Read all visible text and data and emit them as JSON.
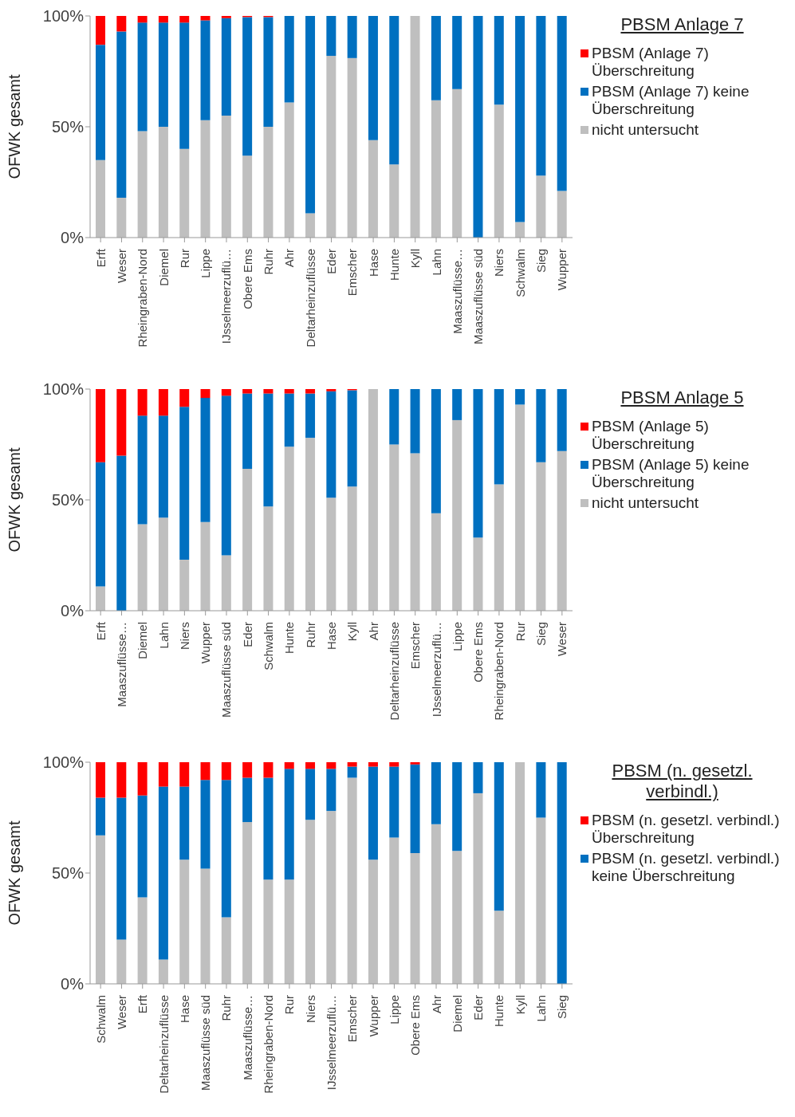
{
  "chart_data": [
    {
      "type": "bar",
      "stacked": true,
      "ylabel": "OFWK gesamt",
      "legend_title": "PBSM Anlage 7",
      "legend": "right",
      "ylim": [
        0,
        100
      ],
      "yticks": [
        {
          "value": 0,
          "label": "0%"
        },
        {
          "value": 50,
          "label": "50%"
        },
        {
          "value": 100,
          "label": "100%"
        }
      ],
      "categories": [
        "Erft",
        "Weser",
        "Rheingraben-Nord",
        "Diemel",
        "Rur",
        "Lippe",
        "IJsselmeerzuflü…",
        "Obere Ems",
        "Ruhr",
        "Ahr",
        "Deltarheinzuflüsse",
        "Eder",
        "Emscher",
        "Hase",
        "Hunte",
        "Kyll",
        "Lahn",
        "Maaszuflüsse…",
        "Maaszuflüsse süd",
        "Niers",
        "Schwalm",
        "Sieg",
        "Wupper"
      ],
      "series": [
        {
          "name": "nicht untersucht",
          "color": "#bfbfbf",
          "values": [
            35,
            18,
            48,
            50,
            40,
            53,
            55,
            37,
            50,
            61,
            11,
            82,
            81,
            44,
            33,
            100,
            62,
            67,
            0,
            60,
            7,
            28,
            21
          ]
        },
        {
          "name": "PBSM (Anlage 7) keine Überschreitung",
          "color": "#0070c0",
          "values": [
            52,
            75,
            49,
            47,
            57,
            45,
            44,
            62.5,
            49.5,
            39,
            89,
            18,
            19,
            56,
            67,
            0,
            38,
            33,
            100,
            40,
            93,
            72,
            79
          ]
        },
        {
          "name": "PBSM (Anlage 7) Überschreitung",
          "color": "#ff0000",
          "values": [
            13,
            7,
            3,
            3,
            3,
            2,
            1,
            0.5,
            0.5,
            0,
            0,
            0,
            0,
            0,
            0,
            0,
            0,
            0,
            0,
            0,
            0,
            0,
            0
          ]
        }
      ]
    },
    {
      "type": "bar",
      "stacked": true,
      "ylabel": "OFWK gesamt",
      "legend_title": "PBSM Anlage 5",
      "legend": "right",
      "ylim": [
        0,
        100
      ],
      "yticks": [
        {
          "value": 0,
          "label": "0%"
        },
        {
          "value": 50,
          "label": "50%"
        },
        {
          "value": 100,
          "label": "100%"
        }
      ],
      "categories": [
        "Erft",
        "Maaszuflüsse…",
        "Diemel",
        "Lahn",
        "Niers",
        "Wupper",
        "Maaszuflüsse süd",
        "Eder",
        "Schwalm",
        "Hunte",
        "Ruhr",
        "Hase",
        "Kyll",
        "Ahr",
        "Deltarheinzuflüsse",
        "Emscher",
        "IJsselmeerzuflü…",
        "Lippe",
        "Obere Ems",
        "Rheingraben-Nord",
        "Rur",
        "Sieg",
        "Weser"
      ],
      "series": [
        {
          "name": "nicht untersucht",
          "color": "#bfbfbf",
          "values": [
            11,
            0,
            39,
            42,
            23,
            40,
            25,
            64,
            47,
            74,
            78,
            51,
            56,
            100,
            75,
            71,
            44,
            86,
            33,
            57,
            93,
            67,
            72
          ]
        },
        {
          "name": "PBSM (Anlage 5) keine Überschreitung",
          "color": "#0070c0",
          "values": [
            56,
            70,
            49,
            46,
            69,
            56,
            72,
            34,
            51,
            24,
            20,
            48,
            43.5,
            0,
            25,
            29,
            56,
            14,
            67,
            43,
            7,
            33,
            28
          ]
        },
        {
          "name": "PBSM (Anlage 5) Überschreitung",
          "color": "#ff0000",
          "values": [
            33,
            30,
            12,
            12,
            8,
            4,
            3,
            2,
            2,
            2,
            2,
            1,
            0.5,
            0,
            0,
            0,
            0,
            0,
            0,
            0,
            0,
            0,
            0
          ]
        }
      ]
    },
    {
      "type": "bar",
      "stacked": true,
      "ylabel": "OFWK gesamt",
      "legend_title": "PBSM (n. gesetzl. verbindl.)",
      "legend": "right",
      "ylim": [
        0,
        100
      ],
      "yticks": [
        {
          "value": 0,
          "label": "0%"
        },
        {
          "value": 50,
          "label": "50%"
        },
        {
          "value": 100,
          "label": "100%"
        }
      ],
      "categories": [
        "Schwalm",
        "Weser",
        "Erft",
        "Deltarheinzuflüsse",
        "Hase",
        "Maaszuflüsse süd",
        "Ruhr",
        "Maaszuflüsse…",
        "Rheingraben-Nord",
        "Rur",
        "Niers",
        "IJsselmeerzuflü…",
        "Emscher",
        "Wupper",
        "Lippe",
        "Obere Ems",
        "Ahr",
        "Diemel",
        "Eder",
        "Hunte",
        "Kyll",
        "Lahn",
        "Sieg"
      ],
      "series": [
        {
          "color": "#bfbfbf",
          "values": [
            67,
            20,
            39,
            11,
            56,
            52,
            30,
            73,
            47,
            47,
            74,
            78,
            93,
            56,
            66,
            59,
            72,
            60,
            86,
            33,
            100,
            75,
            0
          ]
        },
        {
          "name": "PBSM (n. gesetzl. verbindl.) keine Überschreitung",
          "color": "#0070c0",
          "values": [
            17,
            64,
            46,
            78,
            33,
            40,
            62,
            20,
            46,
            50,
            23,
            19,
            5,
            42,
            32,
            40,
            28,
            40,
            14,
            67,
            0,
            25,
            100
          ]
        },
        {
          "name": "PBSM (n. gesetzl. verbindl.) Überschreitung",
          "color": "#ff0000",
          "values": [
            16,
            16,
            15,
            11,
            11,
            8,
            8,
            7,
            7,
            3,
            3,
            3,
            2,
            2,
            2,
            1,
            0,
            0,
            0,
            0,
            0,
            0,
            0
          ]
        }
      ]
    }
  ]
}
